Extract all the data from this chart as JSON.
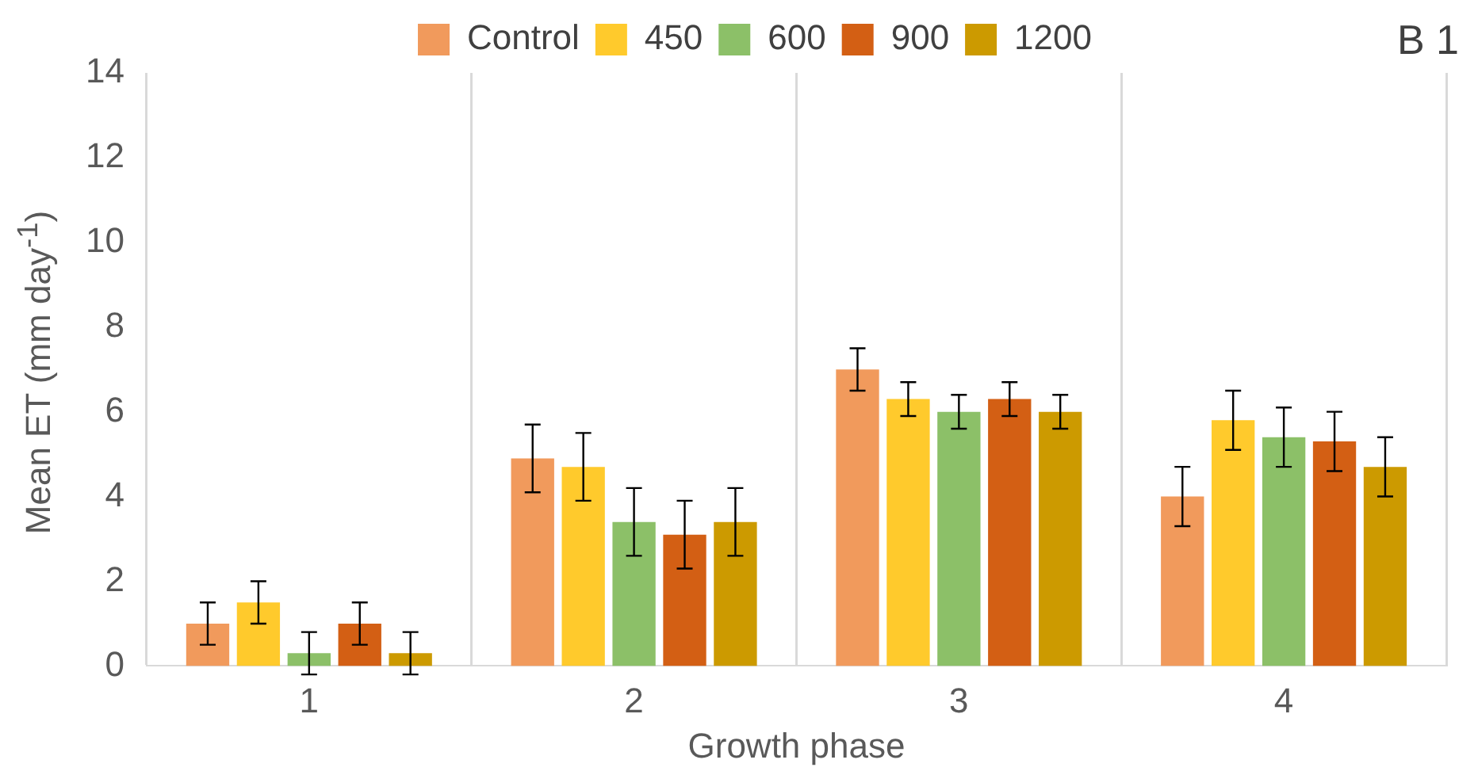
{
  "chart_data": {
    "type": "bar",
    "xlabel": "Growth phase",
    "ylabel": "Mean ET (mm day$^{-1}$)",
    "annotations": [
      "B 1"
    ],
    "categories": [
      "1",
      "2",
      "3",
      "4"
    ],
    "series": [
      {
        "name": "Control",
        "color": "#f19a5c",
        "values": [
          1.0,
          4.9,
          7.0,
          4.0
        ],
        "errors": [
          0.5,
          0.8,
          0.5,
          0.7
        ]
      },
      {
        "name": "450",
        "color": "#ffca2c",
        "values": [
          1.5,
          4.7,
          6.3,
          5.8
        ],
        "errors": [
          0.5,
          0.8,
          0.4,
          0.7
        ]
      },
      {
        "name": "600",
        "color": "#8cc068",
        "values": [
          0.3,
          3.4,
          6.0,
          5.4
        ],
        "errors": [
          0.5,
          0.8,
          0.4,
          0.7
        ]
      },
      {
        "name": "900",
        "color": "#d35f14",
        "values": [
          1.0,
          3.1,
          6.3,
          5.3
        ],
        "errors": [
          0.5,
          0.8,
          0.4,
          0.7
        ]
      },
      {
        "name": "1200",
        "color": "#cc9a00",
        "values": [
          0.3,
          3.4,
          6.0,
          4.7
        ],
        "errors": [
          0.5,
          0.8,
          0.4,
          0.7
        ]
      }
    ],
    "ylim": [
      0,
      14
    ],
    "yticks": [
      0,
      2,
      4,
      6,
      8,
      10,
      12,
      14
    ],
    "grid": "x",
    "legend": "top"
  }
}
